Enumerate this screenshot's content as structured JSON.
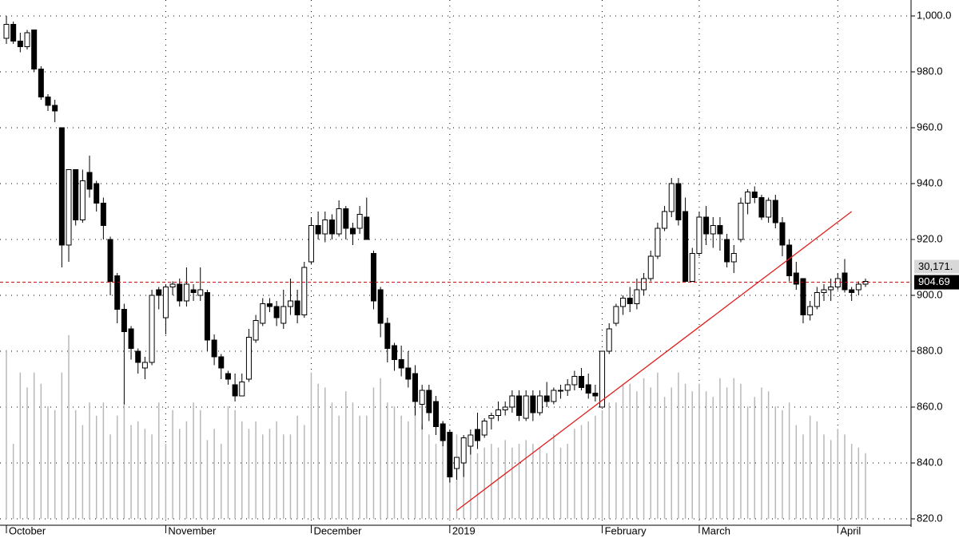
{
  "chart_data": {
    "type": "candlestick",
    "candles": [
      [
        992,
        1000,
        990,
        997
      ],
      [
        997,
        998,
        990,
        991
      ],
      [
        991,
        994,
        987,
        989
      ],
      [
        989,
        995,
        988,
        994
      ],
      [
        995,
        995,
        980,
        981
      ],
      [
        981,
        982,
        970,
        971
      ],
      [
        971,
        972,
        966,
        968
      ],
      [
        968,
        970,
        962,
        966
      ],
      [
        960,
        960,
        910,
        918
      ],
      [
        918,
        945,
        912,
        945
      ],
      [
        945,
        945,
        925,
        927
      ],
      [
        927,
        945,
        926,
        941
      ],
      [
        944,
        950,
        935,
        938
      ],
      [
        940,
        941,
        930,
        933
      ],
      [
        933,
        935,
        920,
        925
      ],
      [
        920,
        921,
        900,
        905
      ],
      [
        907,
        908,
        890,
        895
      ],
      [
        895,
        897,
        861,
        887
      ],
      [
        888,
        889,
        877,
        881
      ],
      [
        880,
        881,
        872,
        876
      ],
      [
        874,
        878,
        870,
        876
      ],
      [
        876,
        902,
        875,
        900
      ],
      [
        902,
        903,
        895,
        900
      ],
      [
        892,
        904,
        886,
        903
      ],
      [
        903,
        905,
        900,
        904
      ],
      [
        904,
        906,
        896,
        898
      ],
      [
        898,
        910,
        896,
        904
      ],
      [
        902,
        904,
        898,
        901
      ],
      [
        900,
        910,
        898,
        902
      ],
      [
        901,
        902,
        880,
        884
      ],
      [
        884,
        886,
        875,
        878
      ],
      [
        878,
        879,
        870,
        874
      ],
      [
        872,
        873,
        868,
        870
      ],
      [
        868,
        872,
        862,
        864
      ],
      [
        864,
        872,
        864,
        869
      ],
      [
        870,
        888,
        869,
        885
      ],
      [
        884,
        893,
        883,
        891
      ],
      [
        890,
        899,
        889,
        897
      ],
      [
        897,
        899,
        894,
        896
      ],
      [
        896,
        898,
        889,
        892
      ],
      [
        890,
        902,
        888,
        896
      ],
      [
        896,
        906,
        893,
        898
      ],
      [
        898,
        902,
        890,
        893
      ],
      [
        893,
        912,
        892,
        910
      ],
      [
        912,
        928,
        911,
        925
      ],
      [
        925,
        930,
        920,
        922
      ],
      [
        922,
        930,
        919,
        927
      ],
      [
        927,
        929,
        920,
        922
      ],
      [
        922,
        934,
        921,
        931
      ],
      [
        931,
        932,
        920,
        924
      ],
      [
        924,
        926,
        918,
        922
      ],
      [
        924,
        932,
        922,
        929
      ],
      [
        928,
        935,
        920,
        920
      ],
      [
        915,
        916,
        895,
        898
      ],
      [
        902,
        903,
        885,
        890
      ],
      [
        890,
        892,
        876,
        881
      ],
      [
        882,
        883,
        873,
        877
      ],
      [
        877,
        882,
        871,
        874
      ],
      [
        874,
        880,
        867,
        870
      ],
      [
        872,
        875,
        857,
        862
      ],
      [
        861,
        868,
        852,
        866
      ],
      [
        866,
        868,
        855,
        858
      ],
      [
        862,
        864,
        850,
        853
      ],
      [
        854,
        855,
        846,
        848
      ],
      [
        851,
        852,
        833,
        835
      ],
      [
        838,
        842,
        834,
        842
      ],
      [
        840,
        850,
        835,
        849
      ],
      [
        846,
        852,
        843,
        850
      ],
      [
        852,
        858,
        845,
        848
      ],
      [
        850,
        856,
        849,
        855
      ],
      [
        856,
        858,
        852,
        857
      ],
      [
        857,
        862,
        855,
        859
      ],
      [
        859,
        862,
        857,
        860
      ],
      [
        860,
        866,
        858,
        864
      ],
      [
        864,
        866,
        855,
        857
      ],
      [
        856,
        866,
        855,
        864
      ],
      [
        864,
        866,
        855,
        858
      ],
      [
        858,
        866,
        857,
        864
      ],
      [
        864,
        869,
        860,
        862
      ],
      [
        862,
        867,
        861,
        866
      ],
      [
        866,
        868,
        863,
        866
      ],
      [
        866,
        870,
        864,
        868
      ],
      [
        868,
        873,
        866,
        871
      ],
      [
        871,
        874,
        866,
        867
      ],
      [
        868,
        872,
        863,
        865
      ],
      [
        865,
        868,
        862,
        864
      ],
      [
        860,
        880,
        860,
        880
      ],
      [
        880,
        890,
        879,
        888
      ],
      [
        890,
        897,
        889,
        896
      ],
      [
        896,
        900,
        893,
        899
      ],
      [
        899,
        903,
        894,
        897
      ],
      [
        897,
        906,
        895,
        902
      ],
      [
        902,
        908,
        900,
        906
      ],
      [
        906,
        916,
        905,
        914
      ],
      [
        914,
        926,
        913,
        924
      ],
      [
        924,
        932,
        923,
        930
      ],
      [
        930,
        942,
        928,
        940
      ],
      [
        940,
        942,
        925,
        927
      ],
      [
        930,
        935,
        905,
        905
      ],
      [
        905,
        917,
        905,
        915
      ],
      [
        915,
        930,
        914,
        928
      ],
      [
        928,
        932,
        918,
        922
      ],
      [
        922,
        928,
        917,
        925
      ],
      [
        925,
        928,
        916,
        922
      ],
      [
        920,
        922,
        910,
        912
      ],
      [
        912,
        918,
        908,
        915
      ],
      [
        920,
        935,
        919,
        933
      ],
      [
        933,
        938,
        929,
        937
      ],
      [
        937,
        939,
        933,
        935
      ],
      [
        935,
        936,
        927,
        928
      ],
      [
        928,
        935,
        926,
        934
      ],
      [
        934,
        936,
        924,
        926
      ],
      [
        926,
        928,
        914,
        918
      ],
      [
        918,
        920,
        905,
        907
      ],
      [
        908,
        912,
        902,
        904
      ],
      [
        906,
        906,
        890,
        893
      ],
      [
        893,
        898,
        891,
        896
      ],
      [
        896,
        903,
        895,
        901
      ],
      [
        901,
        904,
        898,
        902
      ],
      [
        902,
        906,
        898,
        903
      ],
      [
        903,
        908,
        902,
        906
      ],
      [
        908,
        913,
        901,
        902
      ],
      [
        902,
        903,
        898,
        901
      ],
      [
        902,
        905,
        900,
        904
      ],
      [
        904,
        906,
        903,
        905
      ]
    ],
    "volume": [
      90,
      40,
      78,
      70,
      78,
      72,
      60,
      58,
      78,
      98,
      58,
      50,
      62,
      55,
      62,
      45,
      55,
      62,
      50,
      52,
      48,
      45,
      62,
      40,
      58,
      48,
      52,
      62,
      58,
      42,
      48,
      40,
      60,
      58,
      52,
      48,
      52,
      45,
      48,
      52,
      45,
      45,
      55,
      50,
      78,
      72,
      70,
      62,
      55,
      68,
      62,
      55,
      55,
      70,
      75,
      62,
      60,
      55,
      52,
      62,
      50,
      45,
      40,
      52,
      42,
      45,
      40,
      38,
      35,
      38,
      40,
      38,
      42,
      38,
      40,
      42,
      40,
      38,
      35,
      45,
      38,
      40,
      48,
      50,
      52,
      55,
      58,
      62,
      62,
      72,
      72,
      68,
      75,
      70,
      78,
      65,
      70,
      78,
      72,
      68,
      72,
      68,
      65,
      75,
      70,
      75,
      72,
      60,
      65,
      70,
      68,
      60,
      58,
      62,
      50,
      45,
      55,
      52,
      45,
      42,
      48,
      45,
      40,
      38,
      35
    ],
    "volume_ylim": [
      0,
      100
    ],
    "xlim": [
      0,
      124
    ],
    "xticks": [
      {
        "value": 0,
        "label": "October"
      },
      {
        "value": 23,
        "label": "November"
      },
      {
        "value": 44,
        "label": "December"
      },
      {
        "value": 64,
        "label": "2019"
      },
      {
        "value": 86,
        "label": "February"
      },
      {
        "value": 100,
        "label": "March"
      },
      {
        "value": 120,
        "label": "April"
      }
    ],
    "ylim": [
      820,
      1000
    ],
    "yticks": [
      {
        "value": 1000,
        "label": "1,000.0"
      },
      {
        "value": 980,
        "label": "980.0"
      },
      {
        "value": 960,
        "label": "960.0"
      },
      {
        "value": 940,
        "label": "940.0"
      },
      {
        "value": 920,
        "label": "920.0"
      },
      {
        "value": 900,
        "label": "900.0"
      },
      {
        "value": 880,
        "label": "880.0"
      },
      {
        "value": 860,
        "label": "860.0"
      },
      {
        "value": 840,
        "label": "840.0"
      },
      {
        "value": 820,
        "label": "820.0"
      }
    ],
    "trendline": {
      "color": "#e02020",
      "x": [
        65,
        122
      ],
      "y": [
        823,
        930
      ]
    },
    "last_price": {
      "value": 904.69,
      "label": "904.69",
      "color": "#c00000"
    },
    "volume_label": "30,171.",
    "grid": true
  }
}
